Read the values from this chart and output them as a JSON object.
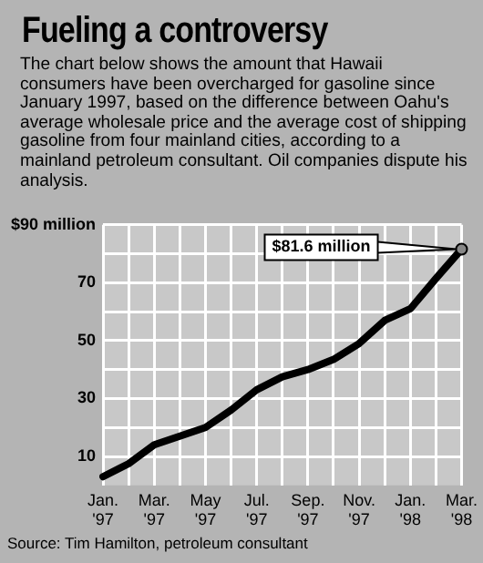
{
  "chart_data": {
    "type": "line",
    "title": "Fueling a controversy",
    "subtitle": "The chart below shows the amount that Hawaii consumers have been overcharged for gasoline since January 1997, based on the difference between Oahu's average wholesale price and the average cost of shipping gasoline from four mainland cities, according to a mainland petroleum consultant.  Oil companies dispute his analysis.",
    "categories": [
      "Jan. '97",
      null,
      "Mar. '97",
      null,
      "May '97",
      null,
      "Jul. '97",
      null,
      "Sep. '97",
      null,
      "Nov. '97",
      null,
      "Jan. '98",
      null,
      "Mar. '98"
    ],
    "series": [
      {
        "color": "#000000",
        "values": [
          3,
          7.5,
          14,
          17,
          20,
          26,
          33,
          37.5,
          40,
          43.5,
          49,
          57,
          61,
          71.5,
          81.6
        ]
      }
    ],
    "ylim": [
      0,
      90
    ],
    "yticks": [
      {
        "value": 10,
        "label": "10"
      },
      {
        "value": 20,
        "label": null
      },
      {
        "value": 30,
        "label": "30"
      },
      {
        "value": 40,
        "label": null
      },
      {
        "value": 50,
        "label": "50"
      },
      {
        "value": 60,
        "label": null
      },
      {
        "value": 70,
        "label": "70"
      },
      {
        "value": 80,
        "label": null
      },
      {
        "value": 90,
        "label": "$90 million"
      }
    ],
    "grid": true,
    "marker": "none",
    "line_style": "solid",
    "legend": false,
    "annotations": [
      {
        "text": "$81.6 million",
        "x": "Mar. '98",
        "y": 81.6
      },
      "Source: Tim Hamilton, petroleum consultant"
    ]
  }
}
